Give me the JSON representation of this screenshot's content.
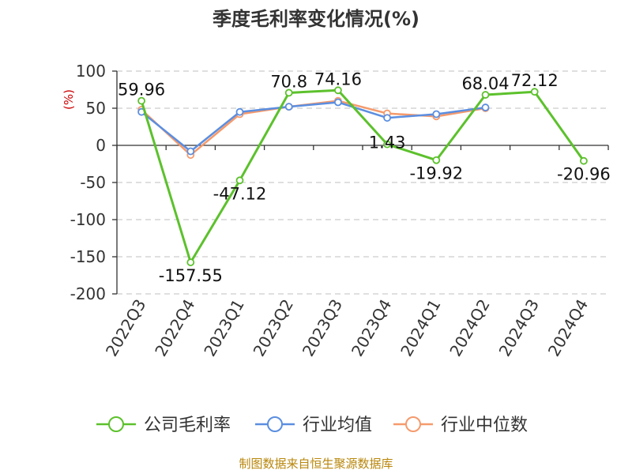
{
  "chart_data": {
    "type": "line",
    "title": "季度毛利率变化情况(%)",
    "ylabel": "(%)",
    "ylim": [
      -200,
      100
    ],
    "yticks": [
      100,
      50,
      0,
      -50,
      -100,
      -150,
      -200
    ],
    "grid": true,
    "legend_position": "bottom",
    "categories": [
      "2022Q3",
      "2022Q4",
      "2023Q1",
      "2023Q2",
      "2023Q3",
      "2023Q4",
      "2024Q1",
      "2024Q2",
      "2024Q3",
      "2024Q4"
    ],
    "series": [
      {
        "name": "公司毛利率",
        "color": "#5cc12c",
        "values": [
          59.96,
          -157.55,
          -47.12,
          70.8,
          74.16,
          1.43,
          -19.92,
          68.04,
          72.12,
          -20.96
        ],
        "labels": [
          "59.96",
          "-157.55",
          "-47.12",
          "70.8",
          "74.16",
          "1.43",
          "-19.92",
          "68.04",
          "72.12",
          "-20.96"
        ]
      },
      {
        "name": "行业均值",
        "color": "#5b8ee0",
        "values": [
          45,
          -8,
          45,
          52,
          58,
          37,
          42,
          51,
          null,
          null
        ]
      },
      {
        "name": "行业中位数",
        "color": "#f59a6c",
        "values": [
          48,
          -13,
          42,
          52,
          60,
          43,
          39,
          50,
          null,
          null
        ]
      }
    ],
    "source": "制图数据来自恒生聚源数据库"
  }
}
